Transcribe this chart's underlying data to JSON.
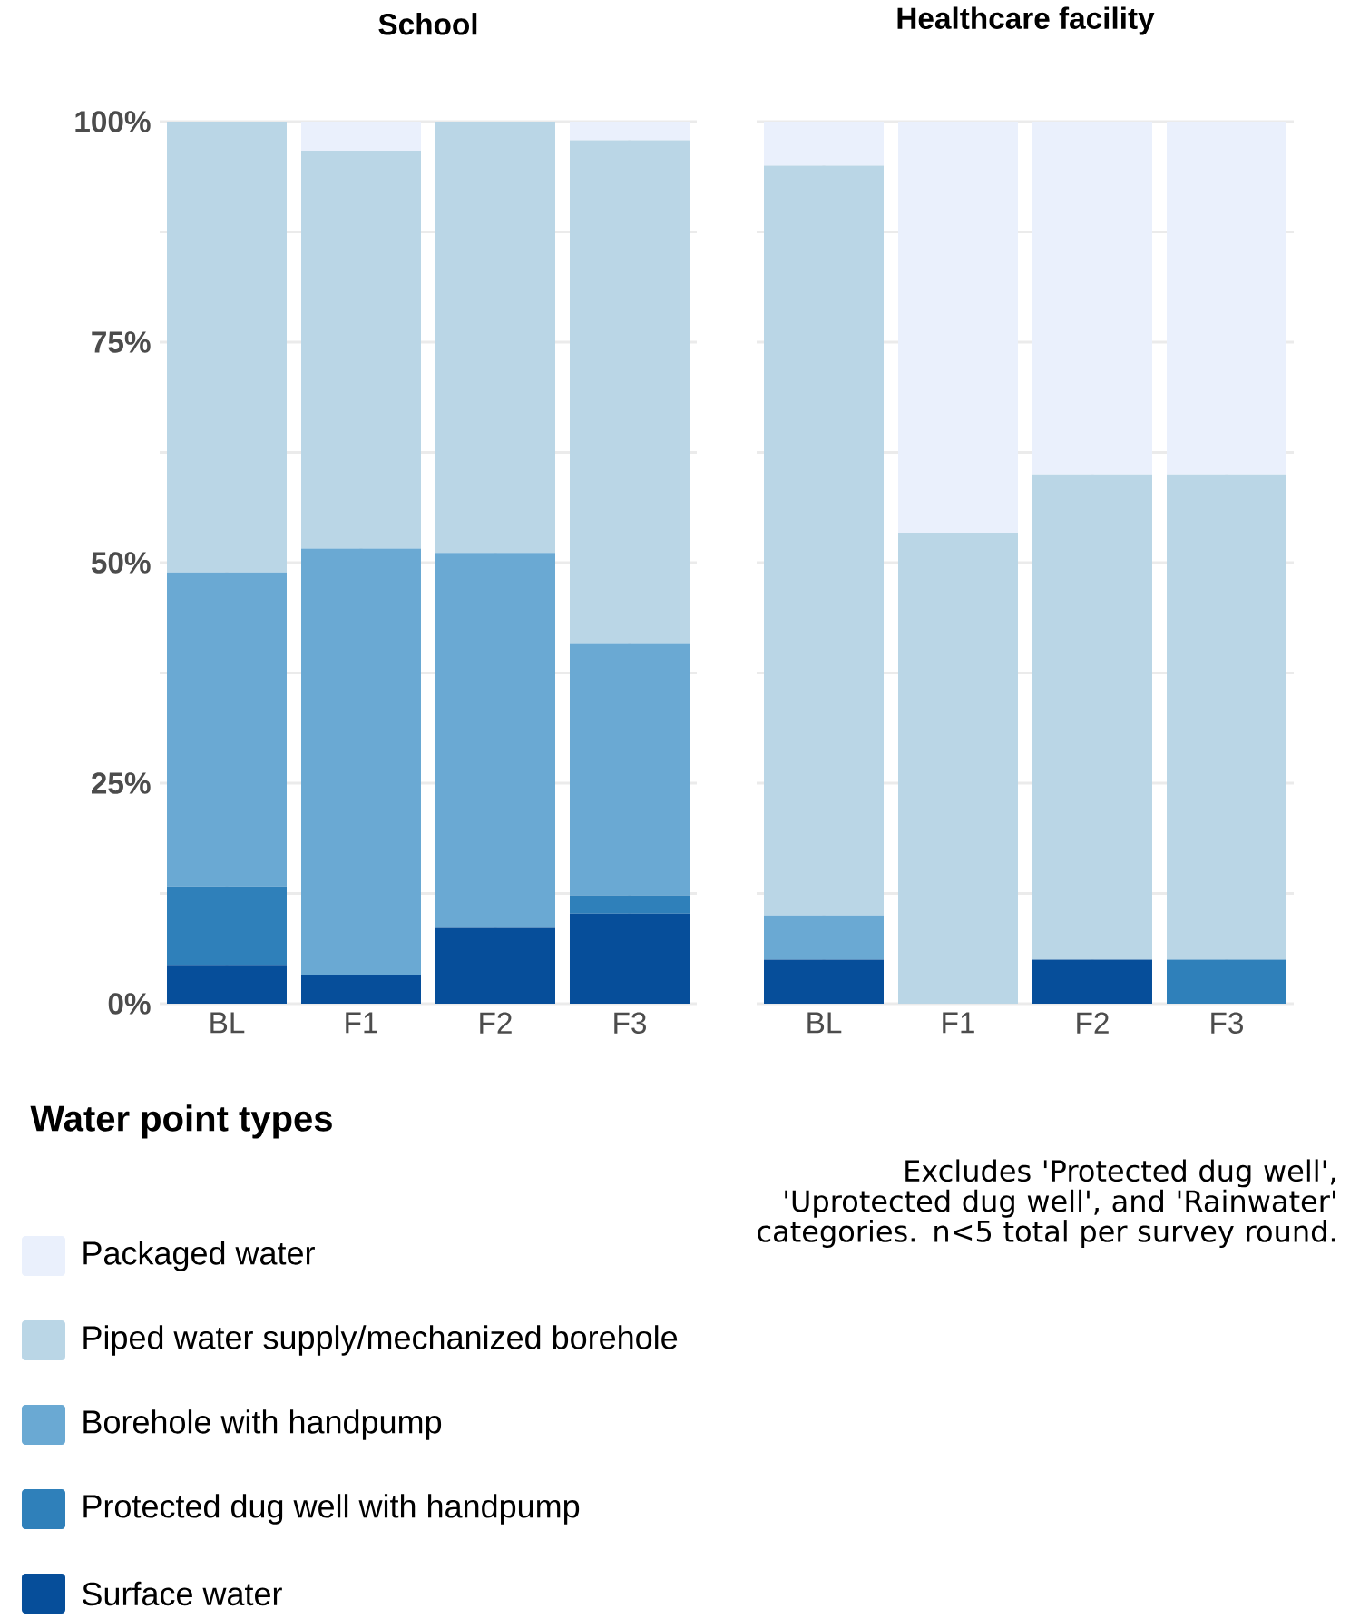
{
  "chart_data": [
    {
      "type": "bar",
      "title": "School",
      "categories": [
        "BL",
        "F1",
        "F2",
        "F3"
      ],
      "stacked": true,
      "ylim": [
        0,
        100
      ],
      "yticks": [
        {
          "value": 0,
          "label": "0%"
        },
        {
          "value": 12.5,
          "label": null
        },
        {
          "value": 25,
          "label": "25%"
        },
        {
          "value": 37.5,
          "label": null
        },
        {
          "value": 50,
          "label": "50%"
        },
        {
          "value": 62.5,
          "label": null
        },
        {
          "value": 75,
          "label": "75%"
        },
        {
          "value": 87.5,
          "label": null
        },
        {
          "value": 100,
          "label": "100%"
        }
      ],
      "grid": true,
      "legend": "bottom left",
      "legend_title": "Water point types",
      "series": [
        {
          "name": "Surface water",
          "color": "#064e9a",
          "values": [
            4.4,
            3.3,
            8.6,
            10.2
          ]
        },
        {
          "name": "Protected dug well with handpump",
          "color": "#2f80ba",
          "values": [
            8.9,
            0,
            0,
            2.1
          ]
        },
        {
          "name": "Borehole with handpump",
          "color": "#6aa9d3",
          "values": [
            35.6,
            48.3,
            42.5,
            28.5
          ]
        },
        {
          "name": "Piped water supply/mechanized borehole",
          "color": "#bad6e6",
          "values": [
            51.1,
            45.1,
            48.9,
            57.1
          ]
        },
        {
          "name": "Packaged water",
          "color": "#eaf0fc",
          "values": [
            0,
            3.3,
            0,
            2.1
          ]
        }
      ]
    },
    {
      "type": "bar",
      "title": "Healthcare facility",
      "categories": [
        "BL",
        "F1",
        "F2",
        "F3"
      ],
      "stacked": true,
      "ylim": [
        0,
        100
      ],
      "grid": true,
      "tick_labels": "x",
      "yticks": [
        {
          "value": 0,
          "label": null
        },
        {
          "value": 12.5,
          "label": null
        },
        {
          "value": 25,
          "label": null
        },
        {
          "value": 37.5,
          "label": null
        },
        {
          "value": 50,
          "label": null
        },
        {
          "value": 62.5,
          "label": null
        },
        {
          "value": 75,
          "label": null
        },
        {
          "value": 87.5,
          "label": null
        },
        {
          "value": 100,
          "label": null
        }
      ],
      "annotations": [
        "Excludes 'Protected dug well', 'Uprotected dug well', and 'Rainwater' categories. n<5 total per survey round."
      ],
      "series": [
        {
          "color": "#064e9a",
          "values": [
            5,
            0,
            5,
            0
          ]
        },
        {
          "color": "#2f80ba",
          "values": [
            0,
            0,
            0,
            5
          ]
        },
        {
          "color": "#6aa9d3",
          "values": [
            5,
            0,
            0,
            0
          ]
        },
        {
          "color": "#bad6e6",
          "values": [
            85,
            53.4,
            55,
            55
          ]
        },
        {
          "color": "#eaf0fc",
          "values": [
            5,
            46.6,
            40,
            40
          ]
        }
      ]
    }
  ]
}
